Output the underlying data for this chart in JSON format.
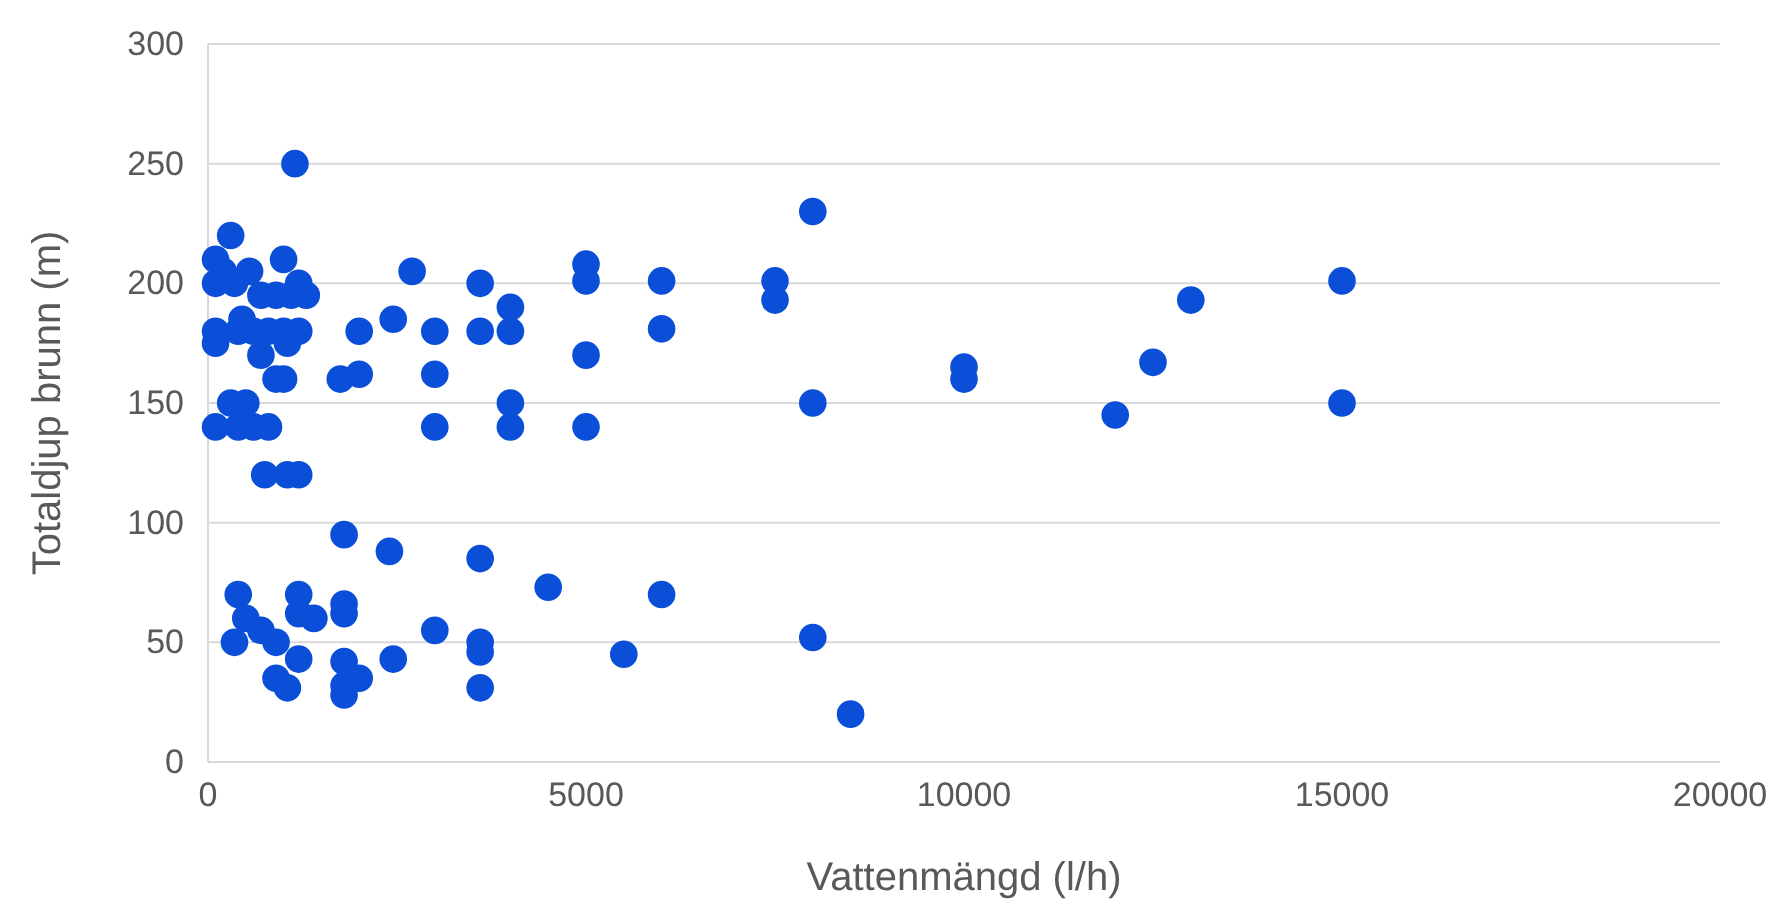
{
  "chart_data": {
    "type": "scatter",
    "xlabel": "Vattenmängd (l/h)",
    "ylabel": "Totaldjup brunn (m)",
    "xlim": [
      0,
      20000
    ],
    "xticks": [
      0,
      5000,
      10000,
      15000,
      20000
    ],
    "ylim": [
      0,
      300
    ],
    "yticks": [
      0,
      50,
      100,
      150,
      200,
      250,
      300
    ],
    "grid": "y",
    "marker": "circle",
    "series": [
      {
        "color": "#0b4fd9",
        "x": [
          1150,
          300,
          100,
          100,
          100,
          100,
          100,
          200,
          300,
          350,
          400,
          400,
          450,
          500,
          550,
          600,
          600,
          700,
          700,
          750,
          800,
          800,
          900,
          900,
          1000,
          1000,
          1000,
          1050,
          1050,
          1100,
          1200,
          1200,
          1200,
          1300,
          1750,
          2000,
          2000,
          2450,
          2700,
          3000,
          3000,
          3000,
          3600,
          3600,
          4000,
          4000,
          4000,
          4000,
          5000,
          5000,
          5000,
          5000,
          6000,
          6000,
          7500,
          7500,
          8000,
          8000,
          10000,
          10000,
          12000,
          12500,
          13000,
          15000,
          15000,
          1800,
          2400,
          3600,
          4500,
          6000,
          400,
          1200,
          1200,
          1800,
          1800,
          500,
          1400,
          700,
          900,
          350,
          1800,
          1200,
          2450,
          3000,
          3600,
          3600,
          5500,
          8000,
          900,
          1050,
          1800,
          1800,
          2000,
          3600,
          8500
        ],
        "values": [
          250,
          220,
          210,
          200,
          180,
          175,
          140,
          205,
          150,
          200,
          180,
          140,
          185,
          150,
          205,
          140,
          180,
          195,
          170,
          120,
          140,
          180,
          160,
          195,
          210,
          180,
          160,
          175,
          120,
          195,
          200,
          180,
          120,
          195,
          160,
          162,
          180,
          185,
          205,
          180,
          162,
          140,
          200,
          180,
          190,
          180,
          150,
          140,
          208,
          201,
          170,
          140,
          201,
          181,
          201,
          193,
          230,
          150,
          165,
          160,
          145,
          167,
          193,
          201,
          150,
          95,
          88,
          85,
          73,
          70,
          70,
          70,
          62,
          66,
          62,
          60,
          60,
          55,
          50,
          50,
          42,
          43,
          43,
          55,
          50,
          46,
          45,
          52,
          35,
          31,
          32,
          28,
          35,
          31,
          20
        ]
      }
    ]
  }
}
